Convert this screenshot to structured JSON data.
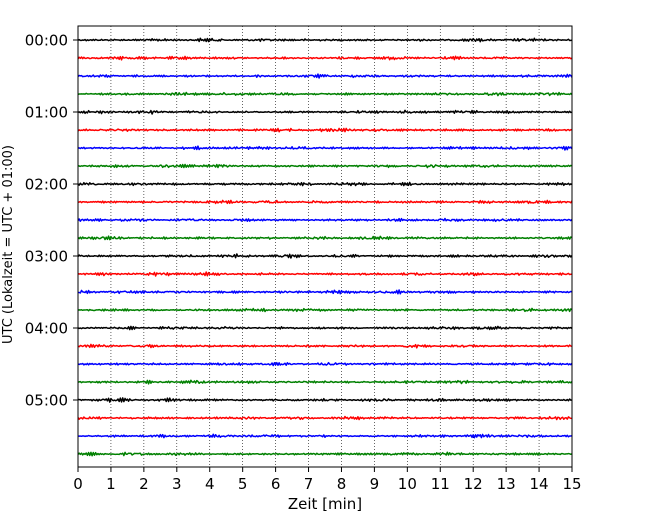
{
  "chart_data": {
    "type": "line",
    "title": "",
    "xlabel": "Zeit  [min]",
    "ylabel": "UTC (Lokalzeit = UTC + 01:00)",
    "xlim": [
      0,
      15
    ],
    "x_ticks": [
      0,
      1,
      2,
      3,
      4,
      5,
      6,
      7,
      8,
      9,
      10,
      11,
      12,
      13,
      14,
      15
    ],
    "y_tick_labels": [
      "00:00",
      "01:00",
      "02:00",
      "03:00",
      "04:00",
      "05:00"
    ],
    "hours_shown": 6,
    "traces_per_hour": 4,
    "minutes_per_trace": 15,
    "trace_colors": [
      "#000000",
      "#ff0000",
      "#0000ff",
      "#008000"
    ],
    "grid": {
      "vertical_dotted": true,
      "horizontal": false
    }
  }
}
